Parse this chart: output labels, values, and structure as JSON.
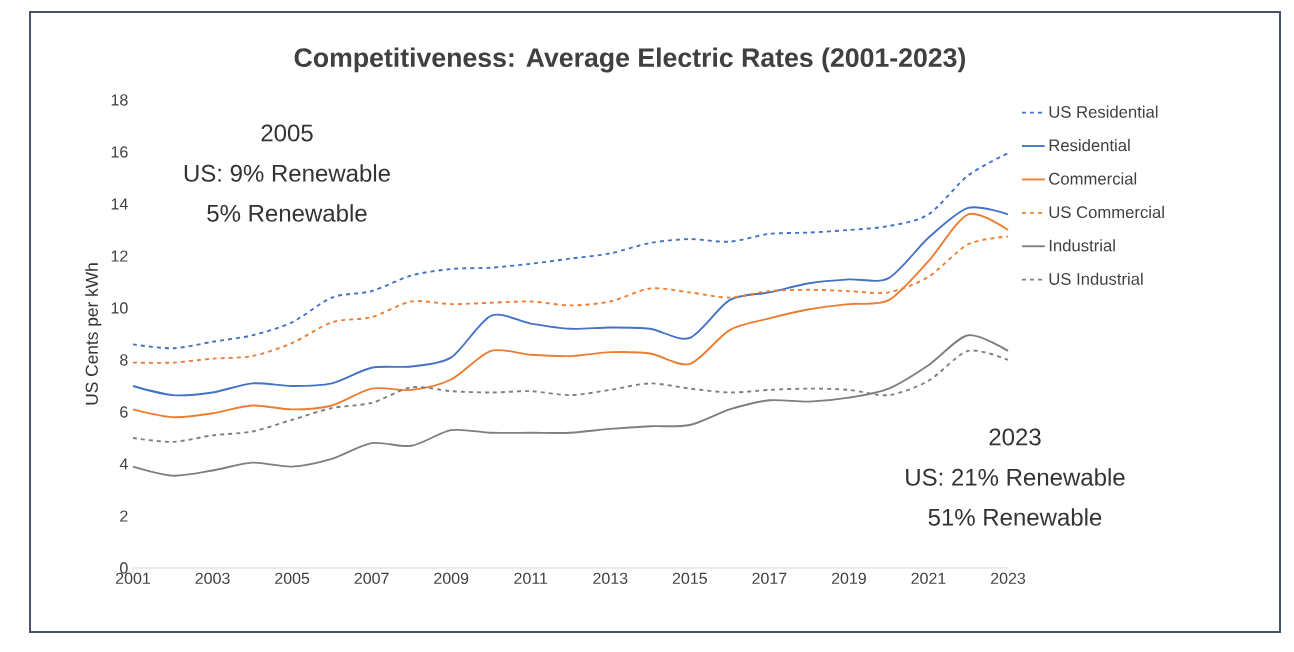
{
  "chart_data": {
    "type": "line",
    "title": "Competitiveness: Average Electric Rates (2001-2023)",
    "ylabel": "US Cents per kWh",
    "x": [
      2001,
      2002,
      2003,
      2004,
      2005,
      2006,
      2007,
      2008,
      2009,
      2010,
      2011,
      2012,
      2013,
      2014,
      2015,
      2016,
      2017,
      2018,
      2019,
      2020,
      2021,
      2022,
      2023
    ],
    "xlim": [
      2001,
      2023
    ],
    "xticks": [
      2001,
      2003,
      2005,
      2007,
      2009,
      2011,
      2013,
      2015,
      2017,
      2019,
      2021,
      2023
    ],
    "ylim": [
      0,
      18
    ],
    "yticks": [
      0,
      2,
      4,
      6,
      8,
      10,
      12,
      14,
      16,
      18
    ],
    "grid": false,
    "legend": "right",
    "marker": "none",
    "series": [
      {
        "name": "US Residential",
        "color": "#4472c4",
        "line_style": "dashed",
        "values": [
          8.6,
          8.45,
          8.7,
          8.95,
          9.45,
          10.4,
          10.65,
          11.25,
          11.5,
          11.55,
          11.7,
          11.9,
          12.1,
          12.5,
          12.65,
          12.55,
          12.85,
          12.9,
          13.0,
          13.15,
          13.6,
          15.1,
          15.95
        ]
      },
      {
        "name": "Residential",
        "color": "#4472c4",
        "line_style": "solid",
        "values": [
          7.0,
          6.65,
          6.75,
          7.1,
          7.0,
          7.1,
          7.7,
          7.75,
          8.1,
          9.7,
          9.4,
          9.2,
          9.25,
          9.2,
          8.85,
          10.3,
          10.6,
          10.95,
          11.1,
          11.15,
          12.7,
          13.85,
          13.6
        ]
      },
      {
        "name": "Commercial",
        "color": "#ed7d31",
        "line_style": "solid",
        "values": [
          6.1,
          5.8,
          5.95,
          6.25,
          6.1,
          6.25,
          6.9,
          6.85,
          7.25,
          8.35,
          8.2,
          8.15,
          8.3,
          8.25,
          7.85,
          9.15,
          9.6,
          9.95,
          10.15,
          10.3,
          11.8,
          13.6,
          13.0
        ]
      },
      {
        "name": "US Commercial",
        "color": "#ed7d31",
        "line_style": "dashed",
        "values": [
          7.9,
          7.9,
          8.05,
          8.15,
          8.65,
          9.45,
          9.65,
          10.25,
          10.15,
          10.2,
          10.25,
          10.1,
          10.25,
          10.75,
          10.6,
          10.4,
          10.65,
          10.7,
          10.65,
          10.6,
          11.2,
          12.45,
          12.75
        ]
      },
      {
        "name": "Industrial",
        "color": "#7f7f7f",
        "line_style": "solid",
        "values": [
          3.9,
          3.55,
          3.75,
          4.05,
          3.9,
          4.2,
          4.8,
          4.7,
          5.3,
          5.2,
          5.2,
          5.2,
          5.35,
          5.45,
          5.5,
          6.1,
          6.45,
          6.4,
          6.55,
          6.9,
          7.8,
          8.95,
          8.35
        ]
      },
      {
        "name": "US Industrial",
        "color": "#7f7f7f",
        "line_style": "dashed",
        "values": [
          5.0,
          4.85,
          5.1,
          5.25,
          5.7,
          6.15,
          6.35,
          6.95,
          6.8,
          6.75,
          6.8,
          6.65,
          6.85,
          7.1,
          6.9,
          6.75,
          6.85,
          6.9,
          6.85,
          6.65,
          7.2,
          8.35,
          8.0
        ]
      }
    ],
    "annotations": [
      "2005",
      "US: 9% Renewable",
      "5% Renewable",
      "2023",
      "US: 21% Renewable",
      "51% Renewable"
    ]
  }
}
